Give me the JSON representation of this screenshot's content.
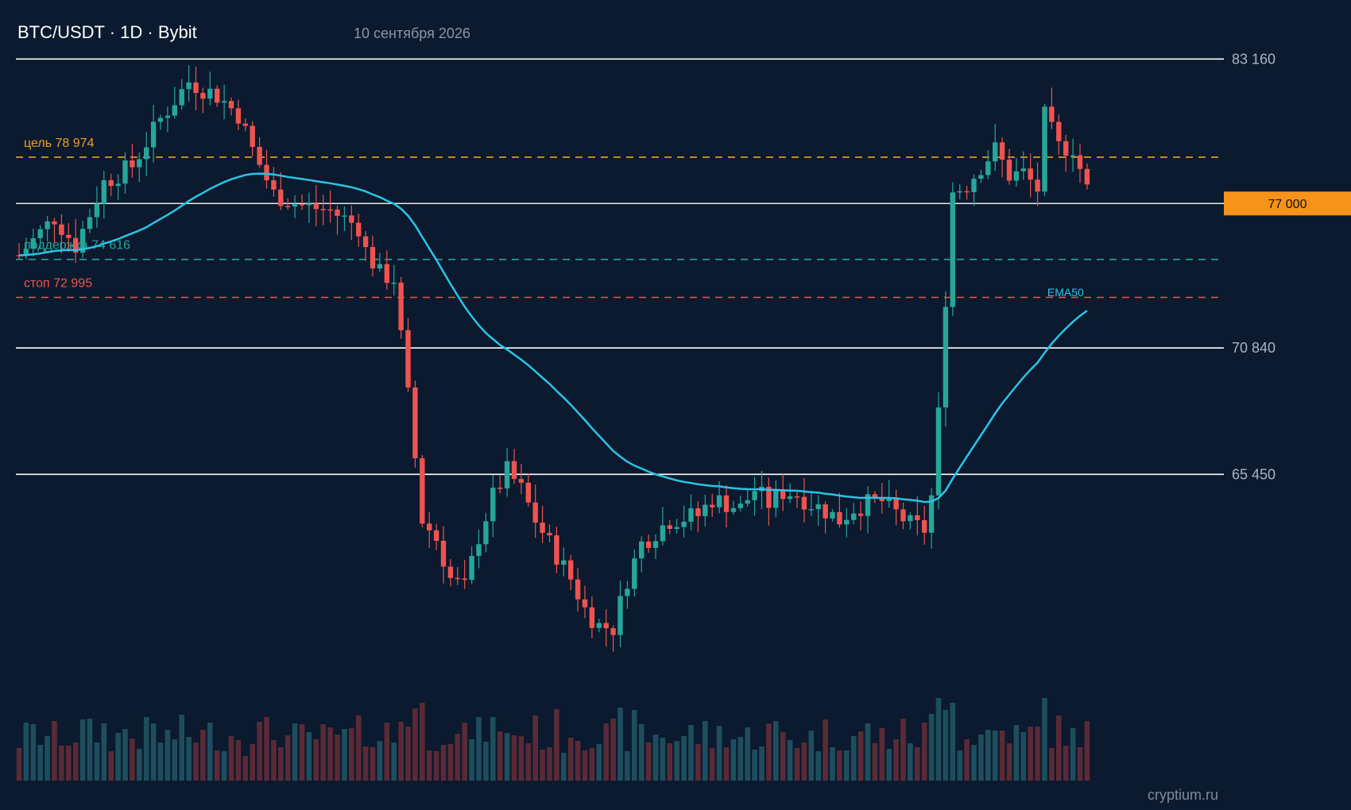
{
  "header": {
    "title": "BTC/USDT · 1D · Bybit",
    "date": "10 сентября 2026"
  },
  "watermark": "cryptium.ru",
  "colors": {
    "background": "#0b1a2e",
    "up": "#26a69a",
    "down": "#ef5350",
    "ema": "#29c5e6",
    "target": "#f0a020",
    "support": "#26a69a",
    "stop": "#ef5350",
    "level": "#ffffff",
    "price_tag": "#f7931a"
  },
  "chart_data": {
    "type": "candlestick",
    "symbol": "BTC/USDT",
    "timeframe": "1D",
    "exchange": "Bybit",
    "ylim": [
      55200,
      85000
    ],
    "grid": false,
    "levels": [
      {
        "label": "83 160",
        "value": 83160,
        "style": "solid",
        "color": "#ffffff"
      },
      {
        "label": "70 840",
        "value": 70840,
        "style": "solid",
        "color": "#ffffff"
      },
      {
        "label": "65 450",
        "value": 65450,
        "style": "solid",
        "color": "#ffffff"
      }
    ],
    "annotations": [
      {
        "label": "цель 78 974",
        "value": 78974,
        "style": "dashed",
        "color": "#f0a020"
      },
      {
        "label": "поддержка 74 616",
        "value": 74616,
        "style": "dashed",
        "color": "#26a69a"
      },
      {
        "label": "стоп 72 995",
        "value": 72995,
        "style": "dashed",
        "color": "#ef5350"
      }
    ],
    "current_price": {
      "label": "77 000",
      "value": 77000
    },
    "ema": {
      "label": "EMA50",
      "period": 50
    },
    "candles": []
  }
}
